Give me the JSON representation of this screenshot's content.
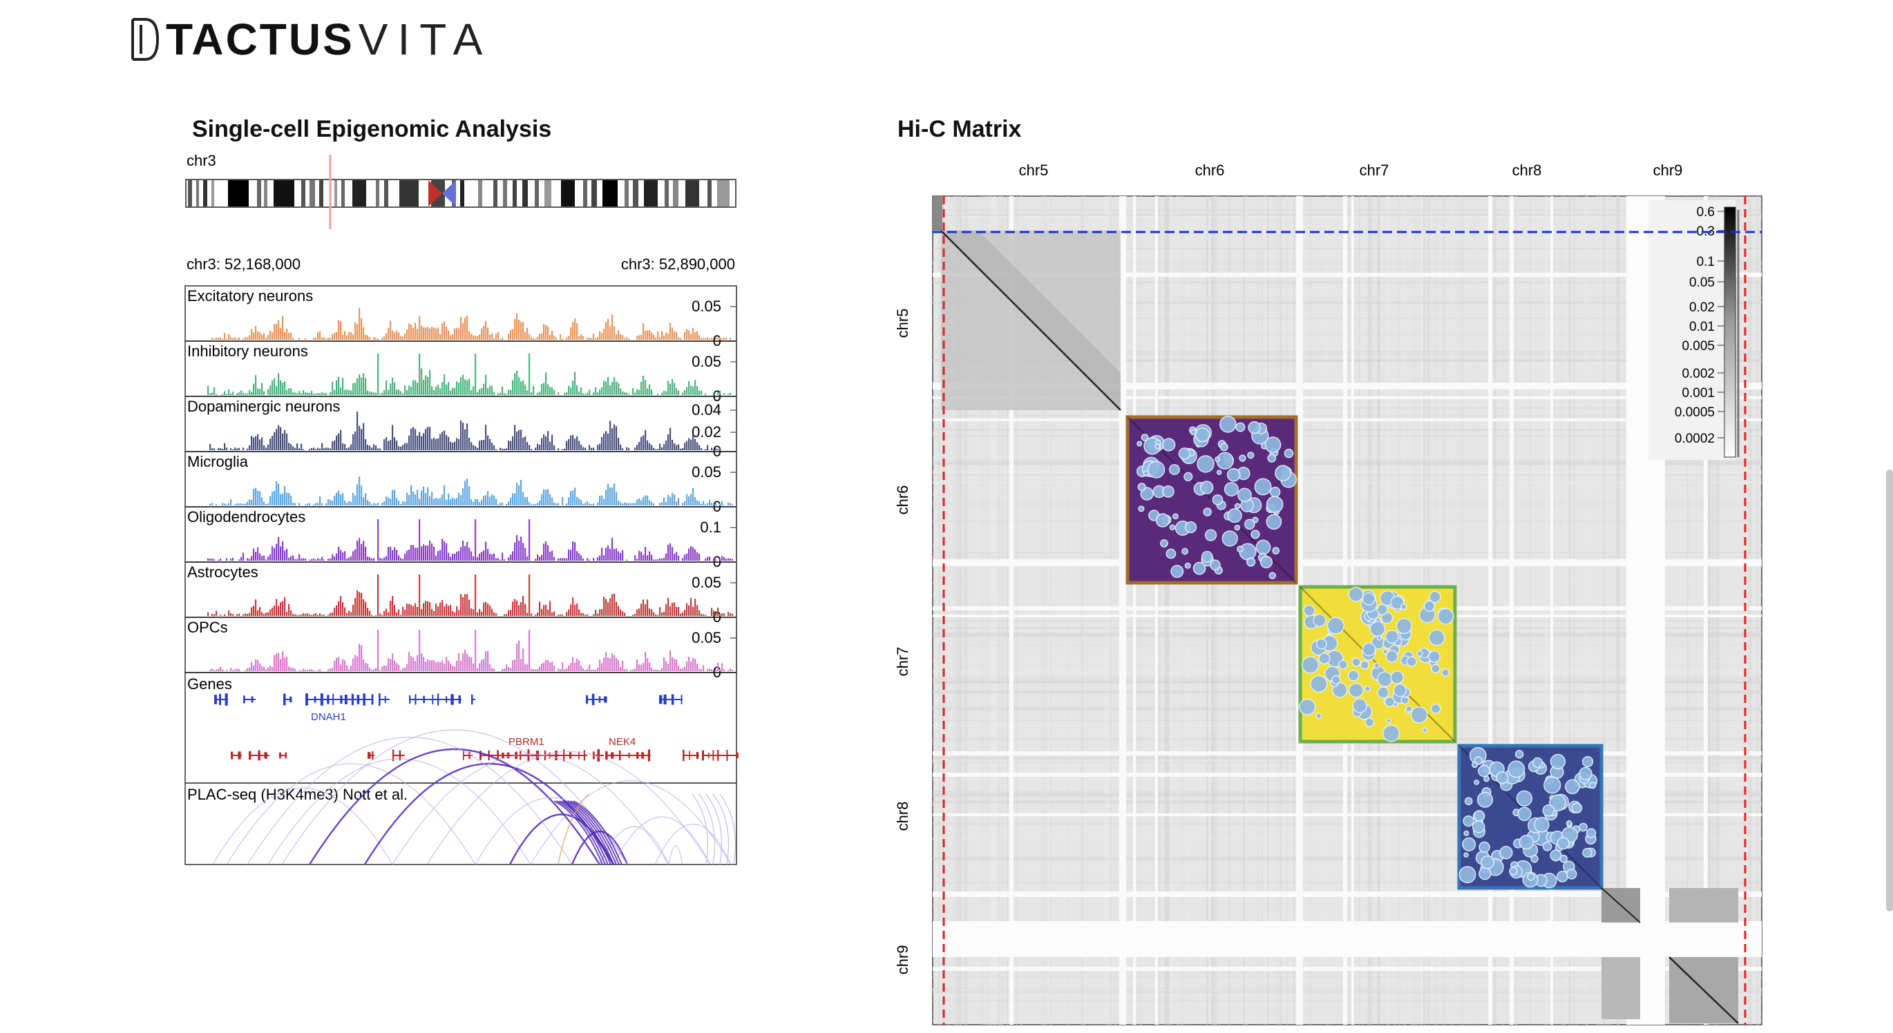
{
  "brand": {
    "part1": "TACTUS",
    "part2": "VITA"
  },
  "epigenomic": {
    "title": "Single-cell Epigenomic Analysis",
    "chromosome": "chr3",
    "range_start": "chr3: 52,168,000",
    "range_end": "chr3: 52,890,000",
    "tracks": [
      {
        "name": "Excitatory neurons",
        "ticks": [
          "0.05",
          "0"
        ],
        "color": "#e8945a"
      },
      {
        "name": "Inhibitory neurons",
        "ticks": [
          "0.05",
          "0"
        ],
        "color": "#4cb37e"
      },
      {
        "name": "Dopaminergic neurons",
        "ticks": [
          "0.04",
          "0.02",
          "0"
        ],
        "color": "#4a4f7e"
      },
      {
        "name": "Microglia",
        "ticks": [
          "0.05",
          "0"
        ],
        "color": "#5ea6e0"
      },
      {
        "name": "Oligodendrocytes",
        "ticks": [
          "0.1",
          "0"
        ],
        "color": "#8a3dc9"
      },
      {
        "name": "Astrocytes",
        "ticks": [
          "0.05",
          "0"
        ],
        "color": "#c83a3a"
      },
      {
        "name": "OPCs",
        "ticks": [
          "0.05",
          "0"
        ],
        "color": "#d77bd0"
      }
    ],
    "genes_track": {
      "name": "Genes",
      "labels": [
        "DNAH1",
        "PBRM1",
        "NEK4"
      ],
      "plus_color": "#2b3fbf",
      "minus_color": "#b22a2a"
    },
    "plac_track": {
      "name": "PLAC-seq (H3K4me3) Nott et al.",
      "color": "#6a3fc9"
    }
  },
  "hic": {
    "title": "Hi-C Matrix",
    "chromosomes": [
      "chr5",
      "chr6",
      "chr7",
      "chr8",
      "chr9"
    ],
    "scale_labels": [
      "0.6",
      "0.3",
      "0.1",
      "0.05",
      "0.02",
      "0.01",
      "0.005",
      "0.002",
      "0.001",
      "0.0005",
      "0.0002"
    ],
    "blocks": [
      {
        "chromosome": "chr6",
        "fill": "#5a2a7a",
        "border": "#a56f2a"
      },
      {
        "chromosome": "chr7",
        "fill": "#f0de3a",
        "border": "#6ab04c"
      },
      {
        "chromosome": "chr8",
        "fill": "#3b4a90",
        "border": "#3574b8"
      }
    ],
    "bubble_color": "#8fb8e0",
    "guide_red": "#e02020",
    "guide_blue": "#1a2fd0"
  }
}
